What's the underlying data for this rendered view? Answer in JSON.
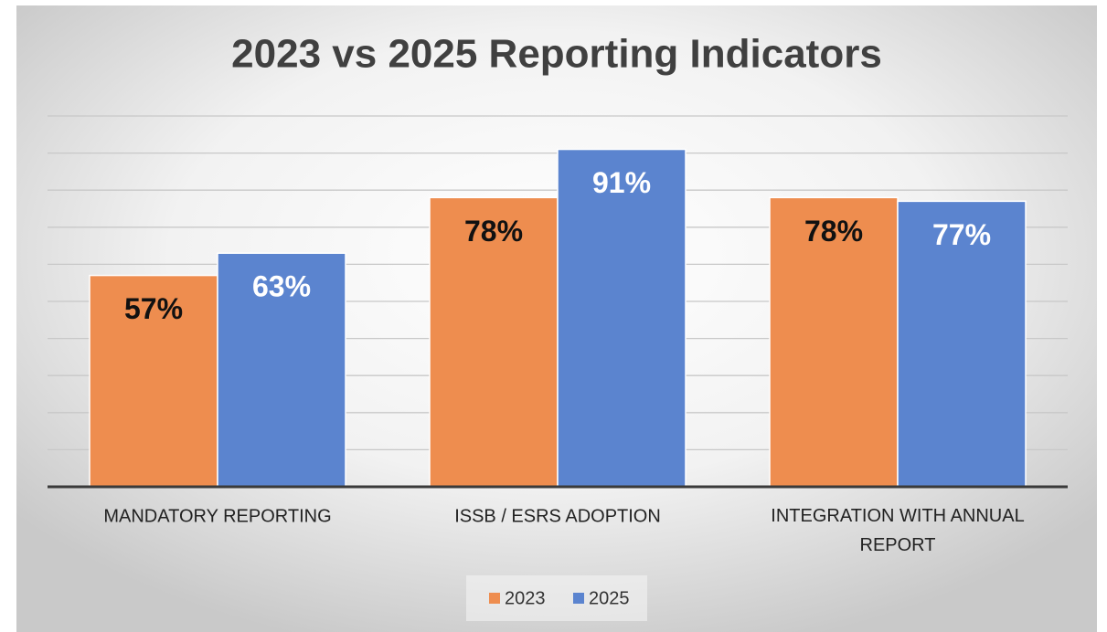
{
  "chart_data": {
    "type": "bar",
    "title": "2023 vs 2025 Reporting Indicators",
    "categories": [
      "MANDATORY REPORTING",
      "ISSB / ESRS ADOPTION",
      "INTEGRATION WITH ANNUAL REPORT"
    ],
    "series": [
      {
        "name": "2023",
        "color": "#ee8d4f",
        "label_color": "#111111",
        "values": [
          57,
          78,
          78
        ],
        "value_labels": [
          "57%",
          "78%",
          "78%"
        ]
      },
      {
        "name": "2025",
        "color": "#5b84cf",
        "label_color": "#ffffff",
        "values": [
          63,
          91,
          77
        ],
        "value_labels": [
          "63%",
          "91%",
          "77%"
        ]
      }
    ],
    "ylim": [
      0,
      100
    ],
    "yticks": [
      0,
      10,
      20,
      30,
      40,
      50,
      60,
      70,
      80,
      90,
      100
    ],
    "grid": true,
    "legend": "bottom"
  }
}
